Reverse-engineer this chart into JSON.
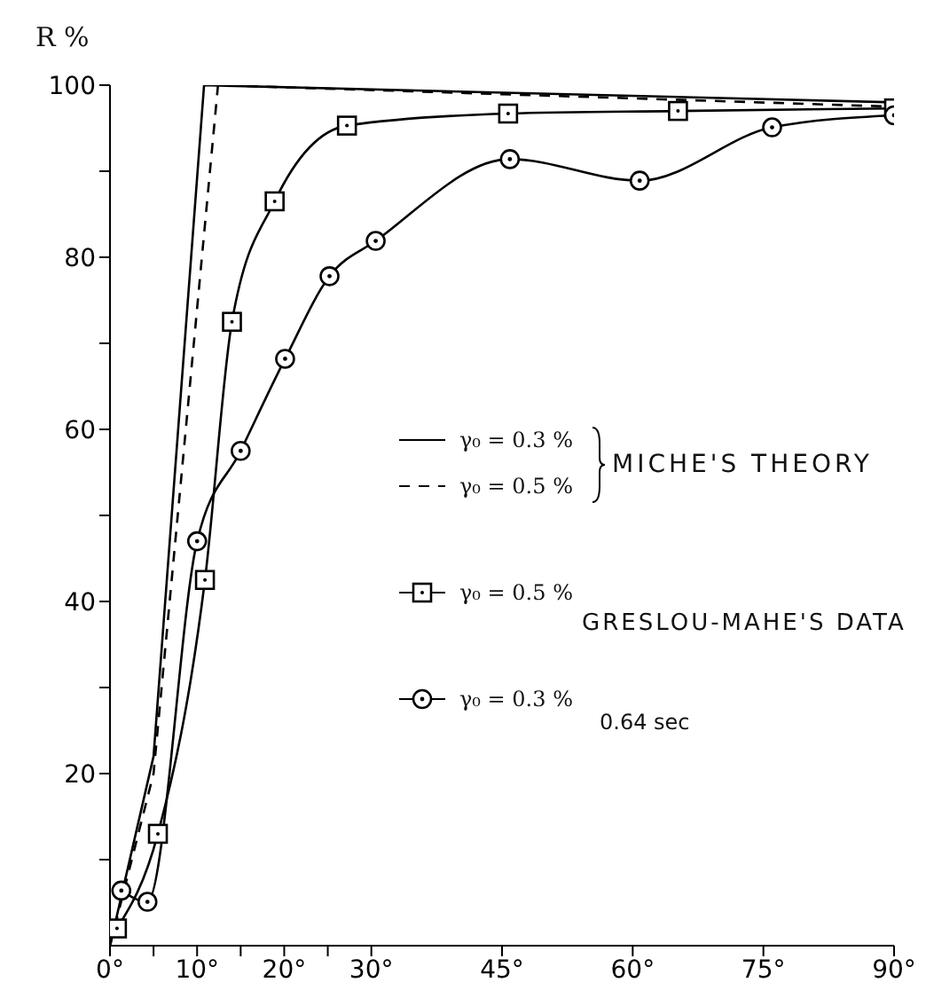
{
  "chart_data": {
    "type": "line",
    "ylabel": "R %",
    "xlim": [
      0,
      90
    ],
    "ylim": [
      0,
      100
    ],
    "xticks": [
      {
        "value": 0,
        "label": "0°"
      },
      {
        "value": 5,
        "label": null
      },
      {
        "value": 10,
        "label": "10°"
      },
      {
        "value": 15,
        "label": null
      },
      {
        "value": 20,
        "label": "20°"
      },
      {
        "value": 25,
        "label": null
      },
      {
        "value": 30,
        "label": "30°"
      },
      {
        "value": 45,
        "label": "45°"
      },
      {
        "value": 60,
        "label": "60°"
      },
      {
        "value": 75,
        "label": "75°"
      },
      {
        "value": 90,
        "label": "90°"
      }
    ],
    "yticks": [
      {
        "value": 10,
        "label": null
      },
      20,
      {
        "value": 30,
        "label": null
      },
      40,
      {
        "value": 50,
        "label": null
      },
      60,
      {
        "value": 70,
        "label": null
      },
      80,
      {
        "value": 90,
        "label": null
      },
      100
    ],
    "grid": false,
    "legend": "center",
    "series": [
      {
        "name": "γ₀ = 0.3 %",
        "color": "#000000",
        "line_style": "solid",
        "marker": "none",
        "x": [
          0,
          5,
          10.8,
          90
        ],
        "values": [
          0,
          22,
          100,
          98
        ]
      },
      {
        "name": "γ₀ = 0.5 %",
        "color": "#000000",
        "line_style": "dashed",
        "marker": "none",
        "x": [
          0,
          5,
          12.4,
          90
        ],
        "values": [
          0,
          20,
          100,
          97.5
        ]
      },
      {
        "name": "γ₀ = 0.5 %",
        "color": "#000000",
        "line_style": "solid",
        "marker": "square",
        "x": [
          0.8,
          5.5,
          10.9,
          14,
          18.9,
          27.2,
          45.7,
          65.2,
          90
        ],
        "values": [
          2,
          13,
          42.5,
          72.5,
          86.5,
          95.3,
          96.7,
          97,
          97.3
        ]
      },
      {
        "name": "γ₀ = 0.3 %",
        "color": "#000000",
        "line_style": "solid",
        "marker": "circle",
        "x": [
          1.3,
          4.3,
          10,
          15,
          20.1,
          25.2,
          30.5,
          45.9,
          60.8,
          76,
          90
        ],
        "values": [
          6.4,
          5.1,
          47,
          57.5,
          68.2,
          77.8,
          81.9,
          91.4,
          88.9,
          95.1,
          96.5
        ]
      }
    ],
    "annotations": [
      "MICHE'S THEORY",
      "GRESLOU-MAHE'S DATA",
      "0.64 sec"
    ]
  }
}
